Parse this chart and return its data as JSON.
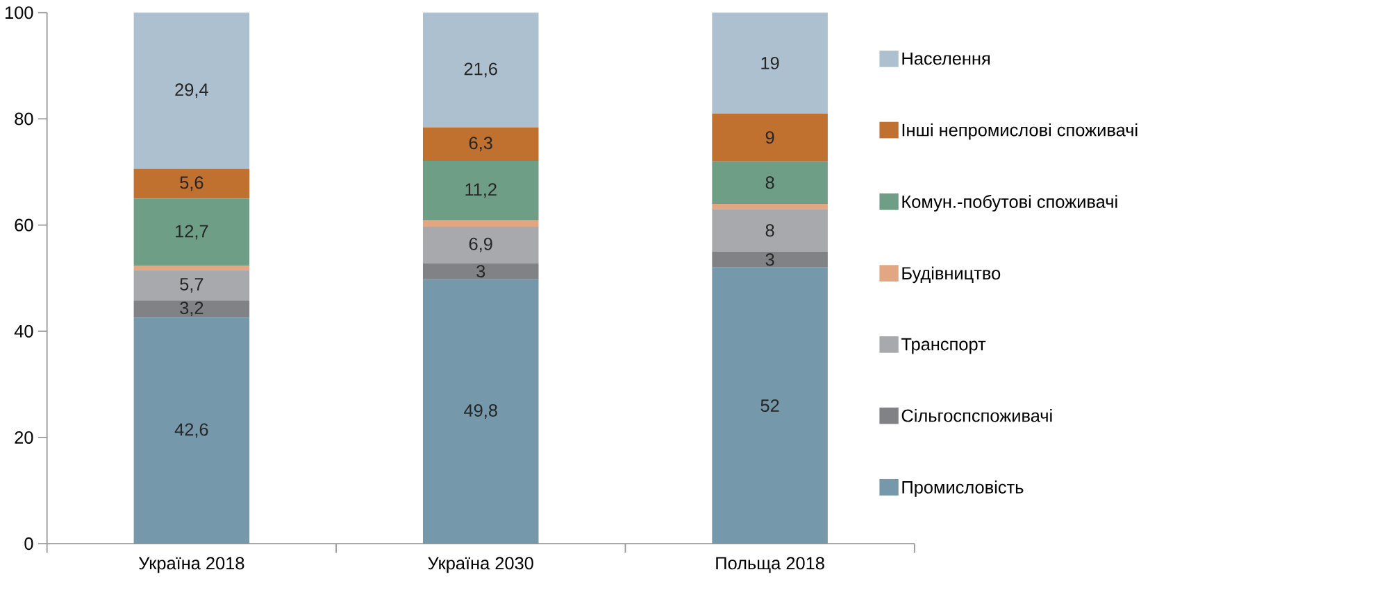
{
  "chart_data": {
    "type": "bar",
    "stacked": true,
    "categories": [
      "Україна 2018",
      "Україна 2030",
      "Польща 2018"
    ],
    "series": [
      {
        "name": "Промисловість",
        "color": "#7698ab",
        "values": [
          42.6,
          49.8,
          52
        ],
        "value_labels": [
          "42,6",
          "49,8",
          "52"
        ]
      },
      {
        "name": "Сільгоспспоживачі",
        "color": "#808285",
        "values": [
          3.2,
          3,
          3
        ],
        "value_labels": [
          "3,2",
          "3",
          "3"
        ]
      },
      {
        "name": "Транспорт",
        "color": "#a7a9ac",
        "values": [
          5.7,
          6.9,
          8
        ],
        "value_labels": [
          "5,7",
          "6,9",
          "8"
        ]
      },
      {
        "name": "Будівництво",
        "color": "#e3a683",
        "values": [
          0.8,
          1.2,
          1
        ],
        "value_labels": [
          null,
          null,
          null
        ]
      },
      {
        "name": "Комун.-побутові споживачі",
        "color": "#6f9e86",
        "values": [
          12.7,
          11.2,
          8
        ],
        "value_labels": [
          "12,7",
          "11,2",
          "8"
        ]
      },
      {
        "name": "Інші непромислові споживачі",
        "color": "#c0702f",
        "values": [
          5.6,
          6.3,
          9
        ],
        "value_labels": [
          "5,6",
          "6,3",
          "9"
        ]
      },
      {
        "name": "Населення",
        "color": "#adc0cf",
        "values": [
          29.4,
          21.6,
          19
        ],
        "value_labels": [
          "29,4",
          "21,6",
          "19"
        ]
      }
    ],
    "ylim": [
      0,
      100
    ],
    "yticks": [
      0,
      20,
      40,
      60,
      80,
      100
    ],
    "grid": false,
    "legend": "right"
  }
}
